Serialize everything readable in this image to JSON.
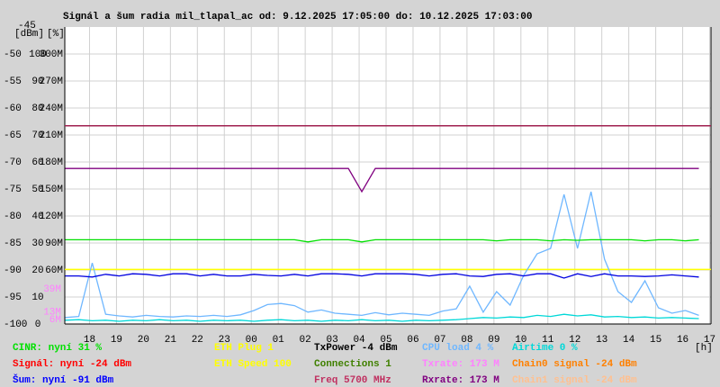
{
  "chart_data": {
    "type": "line",
    "title": "Signál a šum radia mil_tlapal_ac od: 9.12.2025 17:05:00 do: 10.12.2025 17:03:00",
    "y_unit_labels": [
      "[dBm]",
      "[%]"
    ],
    "x_unit_label": "[h]",
    "xlim": [
      17.083,
      41.05
    ],
    "xticks": [
      18,
      19,
      20,
      21,
      22,
      23,
      {
        "value": 24,
        "label": "00"
      },
      {
        "value": 25,
        "label": "01"
      },
      {
        "value": 26,
        "label": "02"
      },
      {
        "value": 27,
        "label": "03"
      },
      {
        "value": 28,
        "label": "04"
      },
      {
        "value": 29,
        "label": "05"
      },
      {
        "value": 30,
        "label": "06"
      },
      {
        "value": 31,
        "label": "07"
      },
      {
        "value": 32,
        "label": "08"
      },
      {
        "value": 33,
        "label": "09"
      },
      {
        "value": 34,
        "label": "10"
      },
      {
        "value": 35,
        "label": "11"
      },
      {
        "value": 36,
        "label": "12"
      },
      {
        "value": 37,
        "label": "13"
      },
      {
        "value": 38,
        "label": "14"
      },
      {
        "value": 39,
        "label": "15"
      },
      {
        "value": 40,
        "label": "16"
      },
      {
        "value": 41,
        "label": "17"
      }
    ],
    "ylim": [
      -100,
      -45
    ],
    "yticks": [
      -45,
      -50,
      -55,
      -60,
      -65,
      -70,
      -75,
      -80,
      -85,
      -90,
      -95,
      -100
    ],
    "y_percent_labels": [
      "100",
      "90",
      "80",
      "70",
      "60",
      "50",
      "40",
      "30",
      "20",
      "10",
      "0"
    ],
    "y_rate_labels": [
      "300M",
      "270M",
      "240M",
      "210M",
      "180M",
      "150M",
      "120M",
      "90M",
      "60M"
    ],
    "rate_markers": [
      {
        "label": "39M",
        "value": -93.5,
        "color": "#ff80ff"
      },
      {
        "label": "13M",
        "value": -97.8,
        "color": "#ff80ff"
      },
      {
        "label": "6M",
        "value": -99.2,
        "color": "#ff80ff"
      }
    ],
    "grid": true,
    "reference_lines": [
      {
        "value": -63.3,
        "color": "#a02050"
      },
      {
        "value": -89.9,
        "color": "#ffff00"
      }
    ],
    "x": [
      17.1,
      17.6,
      18.1,
      18.6,
      19.1,
      19.6,
      20.1,
      20.6,
      21.1,
      21.6,
      22.1,
      22.6,
      23.1,
      23.6,
      24.1,
      24.6,
      25.1,
      25.6,
      26.1,
      26.6,
      27.1,
      27.6,
      28.1,
      28.6,
      29.1,
      29.6,
      30.1,
      30.6,
      31.1,
      31.6,
      32.1,
      32.6,
      33.1,
      33.6,
      34.1,
      34.6,
      35.1,
      35.6,
      36.1,
      36.6,
      37.1,
      37.6,
      38.1,
      38.6,
      39.1,
      39.6,
      40.1,
      40.6
    ],
    "series": [
      {
        "color": "#800080",
        "values": [
          -71.2,
          -71.2,
          -71.2,
          -71.2,
          -71.2,
          -71.2,
          -71.2,
          -71.2,
          -71.2,
          -71.2,
          -71.2,
          -71.2,
          -71.2,
          -71.2,
          -71.2,
          -71.2,
          -71.2,
          -71.2,
          -71.2,
          -71.2,
          -71.2,
          -71.2,
          -75.5,
          -71.2,
          -71.2,
          -71.2,
          -71.2,
          -71.2,
          -71.2,
          -71.2,
          -71.2,
          -71.2,
          -71.2,
          -71.2,
          -71.2,
          -71.2,
          -71.2,
          -71.2,
          -71.2,
          -71.2,
          -71.2,
          -71.2,
          -71.2,
          -71.2,
          -71.2,
          -71.2,
          -71.2,
          -71.2
        ]
      },
      {
        "color": "#00e000",
        "values": [
          -84.4,
          -84.4,
          -84.4,
          -84.4,
          -84.4,
          -84.4,
          -84.4,
          -84.4,
          -84.4,
          -84.4,
          -84.4,
          -84.4,
          -84.4,
          -84.4,
          -84.4,
          -84.4,
          -84.4,
          -84.4,
          -84.8,
          -84.4,
          -84.4,
          -84.4,
          -84.8,
          -84.4,
          -84.4,
          -84.4,
          -84.4,
          -84.4,
          -84.4,
          -84.4,
          -84.4,
          -84.4,
          -84.6,
          -84.4,
          -84.4,
          -84.4,
          -84.6,
          -84.4,
          -84.5,
          -84.4,
          -84.4,
          -84.4,
          -84.4,
          -84.6,
          -84.4,
          -84.4,
          -84.6,
          -84.4
        ]
      },
      {
        "color": "#0000e0",
        "values": [
          -91.1,
          -91.1,
          -91.3,
          -90.8,
          -91.1,
          -90.7,
          -90.8,
          -91.1,
          -90.7,
          -90.7,
          -91.1,
          -90.8,
          -91.1,
          -91.1,
          -90.8,
          -91.0,
          -91.1,
          -90.8,
          -91.1,
          -90.7,
          -90.7,
          -90.8,
          -91.1,
          -90.7,
          -90.7,
          -90.7,
          -90.8,
          -91.1,
          -90.8,
          -90.7,
          -91.1,
          -91.2,
          -90.8,
          -90.7,
          -91.1,
          -90.7,
          -90.7,
          -91.5,
          -90.7,
          -91.2,
          -90.7,
          -91.1,
          -91.1,
          -91.2,
          -91.1,
          -90.9,
          -91.1,
          -91.3
        ]
      },
      {
        "color": "#6fb7ff",
        "values": [
          -98.8,
          -98.6,
          -88.7,
          -98.2,
          -98.5,
          -98.7,
          -98.4,
          -98.6,
          -98.7,
          -98.5,
          -98.6,
          -98.4,
          -98.6,
          -98.3,
          -97.5,
          -96.4,
          -96.2,
          -96.6,
          -97.8,
          -97.4,
          -98.0,
          -98.2,
          -98.4,
          -97.9,
          -98.3,
          -98.0,
          -98.2,
          -98.4,
          -97.6,
          -97.2,
          -93.0,
          -97.8,
          -94.0,
          -96.5,
          -91.0,
          -87.0,
          -86.0,
          -76.0,
          -86.0,
          -75.5,
          -88.0,
          -94.0,
          -96.0,
          -92.0,
          -97.0,
          -98.0,
          -97.5,
          -98.4
        ]
      },
      {
        "color": "#00d8d8",
        "values": [
          -99.3,
          -99.2,
          -99.4,
          -99.3,
          -99.5,
          -99.3,
          -99.4,
          -99.2,
          -99.4,
          -99.3,
          -99.5,
          -99.3,
          -99.4,
          -99.3,
          -99.5,
          -99.3,
          -99.2,
          -99.4,
          -99.3,
          -99.5,
          -99.3,
          -99.4,
          -99.2,
          -99.4,
          -99.3,
          -99.5,
          -99.3,
          -99.4,
          -99.3,
          -99.2,
          -99.0,
          -98.8,
          -98.9,
          -98.7,
          -98.8,
          -98.4,
          -98.6,
          -98.2,
          -98.5,
          -98.3,
          -98.7,
          -98.6,
          -98.8,
          -98.7,
          -98.9,
          -98.8,
          -98.9,
          -99.0
        ]
      }
    ],
    "legend": [
      [
        {
          "label": "CINR: nyní 31 %",
          "color": "#00e000"
        },
        {
          "label": "Signál: nyní -24 dBm",
          "color": "#ff0000"
        },
        {
          "label": "Šum: nyní -91 dBm",
          "color": "#0000ff"
        }
      ],
      [
        {
          "label": "ETH Plug 1",
          "color": "#ffff00"
        },
        {
          "label": "ETH Speed 100",
          "color": "#ffff00"
        }
      ],
      [
        {
          "label": "TxPower -4 dBm",
          "color": "#000000"
        },
        {
          "label": "Connections 1",
          "color": "#408000"
        },
        {
          "label": "Freq 5700 MHz",
          "color": "#c03060"
        }
      ],
      [
        {
          "label": "CPU load 4 %",
          "color": "#6fb7ff"
        },
        {
          "label": "Txrate: 173 M",
          "color": "#ff80ff"
        },
        {
          "label": "Rxrate: 173 M",
          "color": "#800080"
        }
      ],
      [
        {
          "label": "Airtime 0 %",
          "color": "#00d8d8"
        },
        {
          "label": "Chain0 signal -24 dBm",
          "color": "#ff8000"
        },
        {
          "label": "Chain1 signal -24 dBm",
          "color": "#ffc090"
        }
      ]
    ]
  }
}
